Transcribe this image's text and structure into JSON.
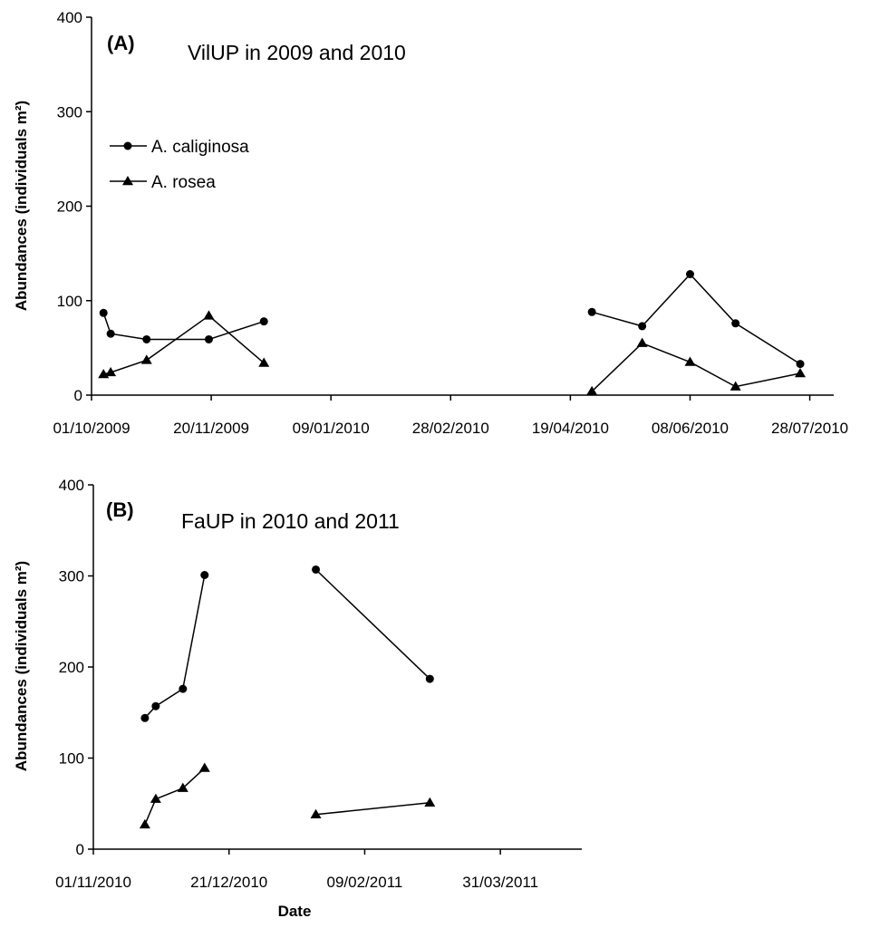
{
  "figure": {
    "xlabel": "Date"
  },
  "chart_data": [
    {
      "type": "line",
      "panel_label": "(A)",
      "title": "VilUP in 2009 and 2010",
      "xlabel": "Date",
      "ylabel": "Abundances (individuals m²)",
      "ylim": [
        0,
        400
      ],
      "yticks": [
        0,
        100,
        200,
        300,
        400
      ],
      "ytick_labels": [
        "0",
        "100",
        "200",
        "300",
        "400"
      ],
      "xlim": [
        "2009-10-01",
        "2010-08-07"
      ],
      "xticks": [
        "2009-10-01",
        "2009-11-20",
        "2010-01-09",
        "2010-02-28",
        "2010-04-19",
        "2010-06-08",
        "2010-07-28"
      ],
      "xtick_labels": [
        "01/10/2009",
        "20/11/2009",
        "09/01/2010",
        "28/02/2010",
        "19/04/2010",
        "08/06/2010",
        "28/07/2010"
      ],
      "grid": false,
      "legend": "top-left",
      "series": [
        {
          "name": "A. caliginosa",
          "marker": "circle",
          "segments": [
            [
              [
                "2009-10-06",
                87
              ],
              [
                "2009-10-09",
                65
              ],
              [
                "2009-10-24",
                59
              ],
              [
                "2009-11-19",
                59
              ],
              [
                "2009-12-12",
                78
              ]
            ],
            [
              [
                "2010-04-28",
                88
              ],
              [
                "2010-05-19",
                73
              ],
              [
                "2010-06-08",
                128
              ],
              [
                "2010-06-27",
                76
              ],
              [
                "2010-07-24",
                33
              ]
            ]
          ]
        },
        {
          "name": "A. rosea",
          "marker": "triangle",
          "segments": [
            [
              [
                "2009-10-06",
                22
              ],
              [
                "2009-10-09",
                24
              ],
              [
                "2009-10-24",
                37
              ],
              [
                "2009-11-19",
                84
              ],
              [
                "2009-12-12",
                34
              ]
            ],
            [
              [
                "2010-04-28",
                4
              ],
              [
                "2010-05-19",
                55
              ],
              [
                "2010-06-08",
                35
              ],
              [
                "2010-06-27",
                9
              ],
              [
                "2010-07-24",
                23
              ]
            ]
          ]
        }
      ]
    },
    {
      "type": "line",
      "panel_label": "(B)",
      "title": "FaUP in 2010 and 2011",
      "xlabel": "Date",
      "ylabel": "Abundances (individuals m²)",
      "ylim": [
        0,
        400
      ],
      "yticks": [
        0,
        100,
        200,
        300,
        400
      ],
      "ytick_labels": [
        "0",
        "100",
        "200",
        "300",
        "400"
      ],
      "xlim": [
        "2010-11-01",
        "2011-04-30"
      ],
      "xticks": [
        "2010-11-01",
        "2010-12-21",
        "2011-02-09",
        "2011-03-31"
      ],
      "xtick_labels": [
        "01/11/2010",
        "21/12/2010",
        "09/02/2011",
        "31/03/2011"
      ],
      "grid": false,
      "legend": "none",
      "series": [
        {
          "name": "A. caliginosa",
          "marker": "circle",
          "segments": [
            [
              [
                "2010-11-20",
                144
              ],
              [
                "2010-11-24",
                157
              ],
              [
                "2010-12-04",
                176
              ],
              [
                "2010-12-12",
                301
              ]
            ],
            [
              [
                "2011-01-22",
                307
              ],
              [
                "2011-03-05",
                187
              ]
            ]
          ]
        },
        {
          "name": "A. rosea",
          "marker": "triangle",
          "segments": [
            [
              [
                "2010-11-20",
                27
              ],
              [
                "2010-11-24",
                55
              ],
              [
                "2010-12-04",
                67
              ],
              [
                "2010-12-12",
                89
              ]
            ],
            [
              [
                "2011-01-22",
                38
              ],
              [
                "2011-03-05",
                51
              ]
            ]
          ]
        }
      ]
    }
  ]
}
